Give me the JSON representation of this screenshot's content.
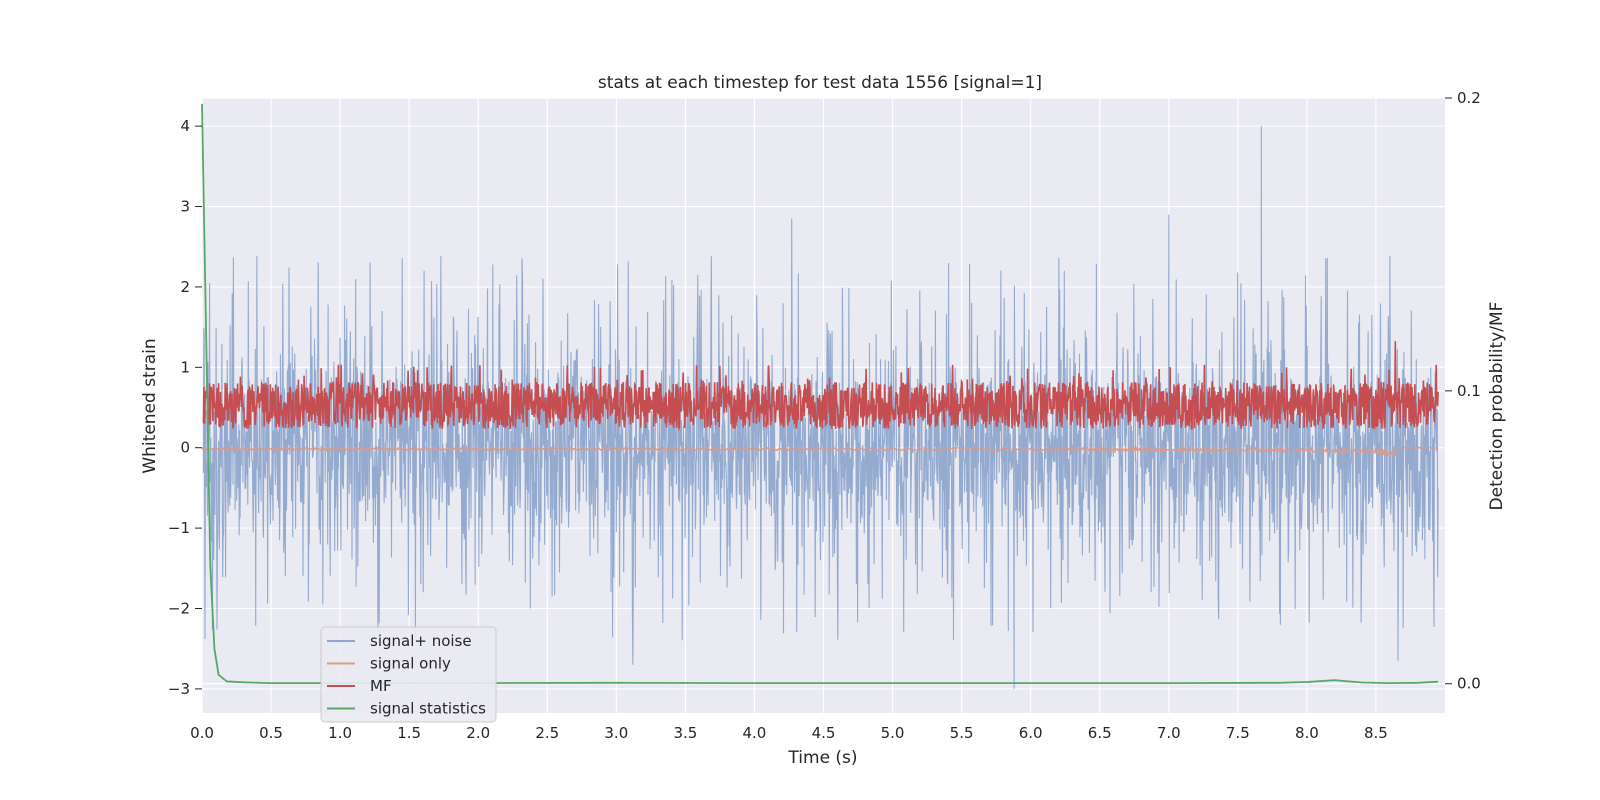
{
  "chart_data": {
    "type": "line",
    "title": "stats at each timestep for test data 1556 [signal=1]",
    "xlabel": "Time (s)",
    "ylabel": "Whitened strain",
    "ylabel_right": "Detection probability/MF",
    "xlim": [
      0.0,
      9.0
    ],
    "ylim": [
      -3.3,
      4.35
    ],
    "ylim_right": [
      -0.01,
      0.2
    ],
    "x_ticks": [
      "0.0",
      "0.5",
      "1.0",
      "1.5",
      "2.0",
      "2.5",
      "3.0",
      "3.5",
      "4.0",
      "4.5",
      "5.0",
      "5.5",
      "6.0",
      "6.5",
      "7.0",
      "7.5",
      "8.0",
      "8.5"
    ],
    "y_ticks": [
      "−3",
      "−2",
      "−1",
      "0",
      "1",
      "2",
      "3",
      "4"
    ],
    "y_ticks_right": [
      "0.0",
      "0.1",
      "0.2"
    ],
    "grid": true,
    "legend_position": "lower-left",
    "series": [
      {
        "name": "signal+ noise",
        "color": "#8fa6cc",
        "axis": "left",
        "description_values": {
          "typical_upper": 1.8,
          "typical_lower": -1.6,
          "spikes": [
            [
              7.67,
              4.0
            ],
            [
              7.0,
              2.9
            ],
            [
              4.27,
              2.85
            ],
            [
              5.88,
              -3.0
            ],
            [
              3.12,
              -2.7
            ],
            [
              8.66,
              -2.65
            ]
          ]
        }
      },
      {
        "name": "signal only",
        "color": "#dd9a86",
        "axis": "left",
        "description_values": {
          "baseline": 0.0,
          "chirp_end_time": 8.64,
          "chirp_min": -0.45
        }
      },
      {
        "name": "MF",
        "color": "#c44e52",
        "axis": "right",
        "description_values": {
          "band_low": 0.087,
          "band_high": 0.103,
          "peak": [
            8.64,
            0.117
          ]
        }
      },
      {
        "name": "signal statistics",
        "color": "#55a868",
        "axis": "right",
        "x": [
          0.0,
          0.03,
          0.06,
          0.09,
          0.12,
          0.18,
          0.3,
          0.5,
          1.0,
          2.0,
          3.0,
          4.0,
          5.0,
          6.0,
          7.0,
          7.8,
          8.0,
          8.2,
          8.4,
          8.6,
          8.8,
          8.95
        ],
        "values": [
          0.198,
          0.12,
          0.04,
          0.012,
          0.003,
          0.0008,
          0.0005,
          0.0002,
          0.0002,
          0.0002,
          0.0003,
          0.0002,
          0.0002,
          0.0002,
          0.0002,
          0.0003,
          0.0006,
          0.0012,
          0.0004,
          0.0002,
          0.0003,
          0.0007
        ]
      }
    ]
  }
}
